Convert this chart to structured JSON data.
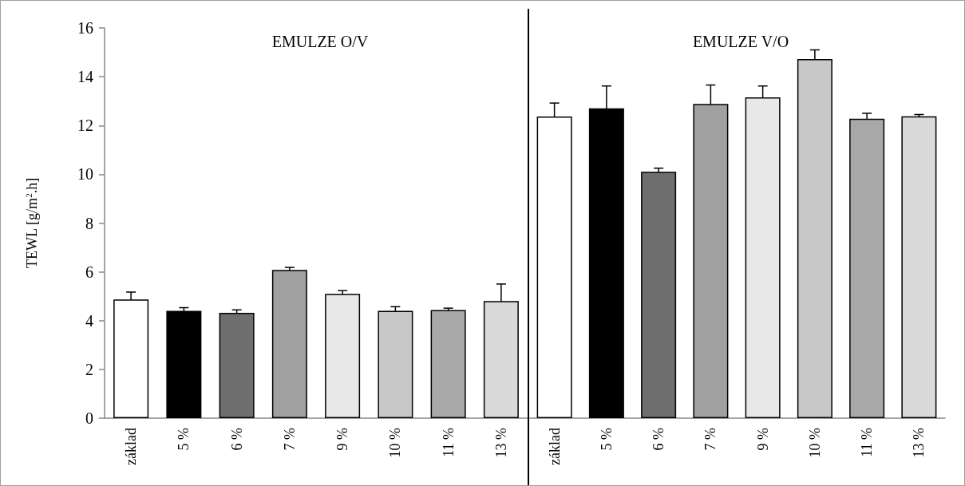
{
  "chart_data": [
    {
      "type": "bar",
      "title": "EMULZE O/V",
      "ylabel": "TEWL [g/m$^{2}$.h]",
      "categories": [
        "základ",
        "5 %",
        "6 %",
        "7 %",
        "9 %",
        "10 %",
        "11 %",
        "13 %"
      ],
      "values": [
        4.87,
        4.4,
        4.32,
        6.08,
        5.1,
        4.4,
        4.43,
        4.8
      ],
      "errors": [
        0.3,
        0.13,
        0.12,
        0.1,
        0.13,
        0.17,
        0.08,
        0.7
      ],
      "colors": [
        "#ffffff",
        "#000000",
        "#6e6e6e",
        "#a0a0a0",
        "#e8e8e8",
        "#c8c8c8",
        "#a8a8a8",
        "#dadada"
      ],
      "ylim": [
        0,
        16
      ],
      "yticks": [
        0,
        2,
        4,
        6,
        8,
        10,
        12,
        14,
        16
      ],
      "grid": false
    },
    {
      "type": "bar",
      "title": "EMULZE V/O",
      "categories": [
        "základ",
        "5 %",
        "6 %",
        "7 %",
        "9 %",
        "10 %",
        "11 %",
        "13 %"
      ],
      "values": [
        12.37,
        12.7,
        10.1,
        12.88,
        13.15,
        14.72,
        12.28,
        12.38
      ],
      "errors": [
        0.55,
        0.92,
        0.15,
        0.78,
        0.47,
        0.38,
        0.22,
        0.07
      ],
      "colors": [
        "#ffffff",
        "#000000",
        "#6e6e6e",
        "#a0a0a0",
        "#e8e8e8",
        "#c8c8c8",
        "#a8a8a8",
        "#dadada"
      ],
      "ylim": [
        0,
        16
      ],
      "yticks": [
        0,
        2,
        4,
        6,
        8,
        10,
        12,
        14,
        16
      ],
      "tick_labels": "x",
      "grid": false
    }
  ]
}
